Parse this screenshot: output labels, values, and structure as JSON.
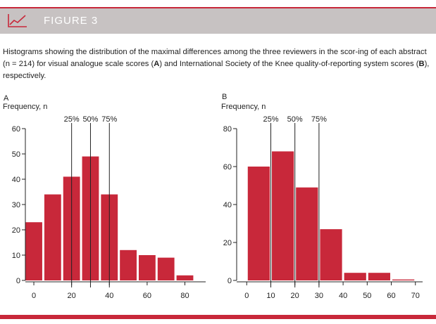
{
  "figure_label": "FIGURE 3",
  "caption": {
    "part1": "Histograms showing the distribution of the maximal differences among the three reviewers in the scor-ing of each abstract (n = 214) for visual analogue scale scores (",
    "bold_a": "A",
    "part2": ") and International Society of the Knee quality-of-reporting system scores (",
    "bold_b": "B",
    "part3": "), respectively."
  },
  "colors": {
    "bar": "#c8283a",
    "banner": "#c7c2c2",
    "accent": "#c8283a",
    "icon": "chart-line-icon"
  },
  "chart_data": [
    {
      "type": "bar",
      "panel_label": "A",
      "ylabel": "Frequency, n",
      "xlabel": "",
      "xlim": [
        -3,
        91
      ],
      "ylim": [
        0,
        60
      ],
      "xticks": [
        0,
        20,
        40,
        60,
        80
      ],
      "yticks": [
        0,
        10,
        20,
        30,
        40,
        50,
        60
      ],
      "bin_width": 10,
      "bins": [
        {
          "start": -5,
          "end": 5,
          "value": 23
        },
        {
          "start": 5,
          "end": 15,
          "value": 34
        },
        {
          "start": 15,
          "end": 25,
          "value": 41
        },
        {
          "start": 25,
          "end": 35,
          "value": 49
        },
        {
          "start": 35,
          "end": 45,
          "value": 34
        },
        {
          "start": 45,
          "end": 55,
          "value": 12
        },
        {
          "start": 55,
          "end": 65,
          "value": 10
        },
        {
          "start": 65,
          "end": 75,
          "value": 9
        },
        {
          "start": 75,
          "end": 85,
          "value": 2
        }
      ],
      "percentiles": [
        {
          "label": "25%",
          "x": 20
        },
        {
          "label": "50%",
          "x": 30
        },
        {
          "label": "75%",
          "x": 40
        }
      ],
      "grid": false
    },
    {
      "type": "bar",
      "panel_label": "B",
      "ylabel": "Frequency, n",
      "xlabel": "",
      "xlim": [
        -3,
        73
      ],
      "ylim": [
        0,
        80
      ],
      "xticks": [
        0,
        10,
        20,
        30,
        40,
        50,
        60,
        70
      ],
      "yticks": [
        0,
        20,
        40,
        60,
        80
      ],
      "bin_width": 10,
      "bins": [
        {
          "start": 0,
          "end": 10,
          "value": 60
        },
        {
          "start": 10,
          "end": 20,
          "value": 68
        },
        {
          "start": 20,
          "end": 30,
          "value": 49
        },
        {
          "start": 30,
          "end": 40,
          "value": 27
        },
        {
          "start": 40,
          "end": 50,
          "value": 4
        },
        {
          "start": 50,
          "end": 60,
          "value": 4
        },
        {
          "start": 60,
          "end": 70,
          "value": 0.5
        }
      ],
      "percentiles": [
        {
          "label": "25%",
          "x": 10
        },
        {
          "label": "50%",
          "x": 20
        },
        {
          "label": "75%",
          "x": 30
        }
      ],
      "grid": false
    }
  ]
}
